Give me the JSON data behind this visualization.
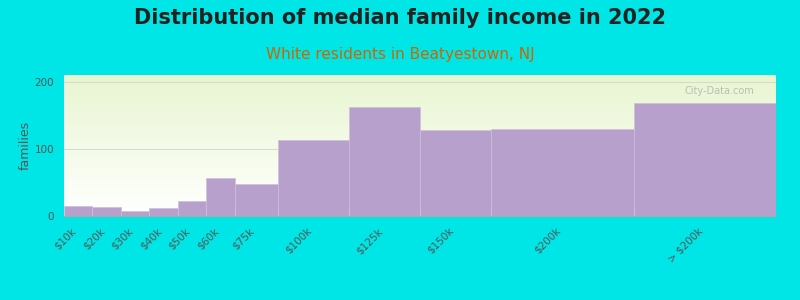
{
  "title": "Distribution of median family income in 2022",
  "subtitle": "White residents in Beatyestown, NJ",
  "ylabel": "families",
  "categories": [
    "$10k",
    "$20k",
    "$30k",
    "$40k",
    "$50k",
    "$60k",
    "$75k",
    "$100k",
    "$125k",
    "$150k",
    "$200k",
    "> $200k"
  ],
  "values": [
    15,
    13,
    8,
    12,
    22,
    57,
    47,
    113,
    163,
    128,
    130,
    168
  ],
  "edges": [
    0,
    10,
    20,
    30,
    40,
    50,
    60,
    75,
    100,
    125,
    150,
    200,
    250
  ],
  "bar_color": "#b8a0cc",
  "bar_edge_color": "#d0bedd",
  "background_color": "#00e5e5",
  "title_fontsize": 15,
  "subtitle_fontsize": 11,
  "subtitle_color": "#cc6600",
  "ylabel_fontsize": 9,
  "tick_fontsize": 7.5,
  "ylim": [
    0,
    210
  ],
  "yticks": [
    0,
    100,
    200
  ],
  "watermark": "City-Data.com"
}
